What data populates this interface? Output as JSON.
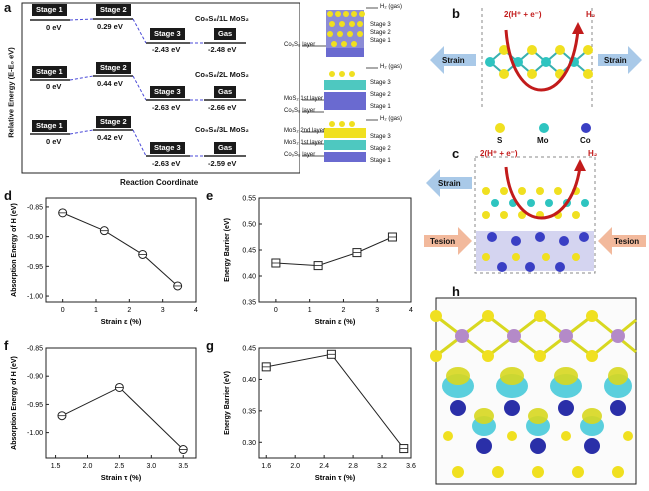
{
  "panel_labels": {
    "a": "a",
    "b": "b",
    "c": "c",
    "d": "d",
    "e": "e",
    "f": "f",
    "g": "g",
    "h": "h"
  },
  "panel_a": {
    "ylabel": "Relative Energy (E-E₀ eV)",
    "xlabel": "Reaction Coordinate",
    "rows": [
      {
        "series": "Co₉S₈/1L MoS₂",
        "stage1": "Stage 1",
        "stage2": "Stage 2",
        "stage3": "Stage 3",
        "gas": "Gas",
        "e1": "0 eV",
        "e2": "0.29 eV",
        "e3": "-2.43 eV",
        "e4": "-2.48 eV"
      },
      {
        "series": "Co₉S₈/2L MoS₂",
        "stage1": "Stage 1",
        "stage2": "Stage 2",
        "stage3": "Stage 3",
        "gas": "Gas",
        "e1": "0 eV",
        "e2": "0.44 eV",
        "e3": "-2.63 eV",
        "e4": "-2.66 eV"
      },
      {
        "series": "Co₉S₈/3L MoS₂",
        "stage1": "Stage 1",
        "stage2": "Stage 2",
        "stage3": "Stage 3",
        "gas": "Gas",
        "e1": "0 eV",
        "e2": "0.42 eV",
        "e3": "-2.63 eV",
        "e4": "-2.59 eV"
      }
    ],
    "struct_labels": [
      {
        "h2": "H₂ (gas)",
        "s3": "Stage 3",
        "s2": "Stage 2",
        "s1": "Stage 1",
        "layers": [
          "Co₉S₈ layer"
        ]
      },
      {
        "h2": "H₂ (gas)",
        "s3": "Stage 3",
        "s2": "Stage 2",
        "s1": "Stage 1",
        "layers": [
          "MoS₂ 1st layer",
          "Co₉S₈ layer"
        ]
      },
      {
        "h2": "H₂ (gas)",
        "s3": "Stage 3",
        "s2": "Stage 2",
        "s1": "Stage 1",
        "layers": [
          "MoS₂ 2nd layer",
          "MoS₂ 1st layer",
          "Co₉S₈ layer"
        ]
      }
    ]
  },
  "panel_b": {
    "reaction": "2(H⁺ + e⁻)",
    "product": "H₂",
    "strain_left": "Strain",
    "strain_right": "Strain",
    "legend": [
      {
        "label": "S",
        "color": "#f2e200"
      },
      {
        "label": "Mo",
        "color": "#2ec4c0"
      },
      {
        "label": "Co",
        "color": "#3a3fc4"
      }
    ]
  },
  "panel_c": {
    "reaction": "2(H⁺ + e⁻)",
    "product": "H₂",
    "strain_left": "Strain",
    "tesion_left": "Tesion",
    "tesion_right": "Tesion"
  },
  "chart_data": [
    {
      "panel": "d",
      "type": "line",
      "xlabel": "Strain ε (%)",
      "ylabel": "Absorption Energy of H (eV)",
      "x": [
        0,
        1.25,
        2.4,
        3.45
      ],
      "y": [
        -0.86,
        -0.89,
        -0.93,
        -0.983
      ],
      "xlim": [
        -0.5,
        4
      ],
      "ylim": [
        -1.01,
        -0.835
      ],
      "xticks": [
        0,
        1,
        2,
        3,
        4
      ],
      "yticks": [
        -0.85,
        -0.9,
        -0.95,
        -1.0
      ],
      "xticklabels": [
        "0",
        "1",
        "2",
        "3",
        "4"
      ],
      "yticklabels": [
        "-0.85",
        "-0.90",
        "-0.95",
        "-1.00"
      ],
      "marker": "circle"
    },
    {
      "panel": "e",
      "type": "line",
      "xlabel": "Strain ε (%)",
      "ylabel": "Energy Barrier (eV)",
      "x": [
        0,
        1.25,
        2.4,
        3.45
      ],
      "y": [
        0.425,
        0.42,
        0.445,
        0.475
      ],
      "xlim": [
        -0.5,
        4
      ],
      "ylim": [
        0.35,
        0.55
      ],
      "xticks": [
        0,
        1,
        2,
        3,
        4
      ],
      "yticks": [
        0.35,
        0.4,
        0.45,
        0.5,
        0.55
      ],
      "xticklabels": [
        "0",
        "1",
        "2",
        "3",
        "4"
      ],
      "yticklabels": [
        "0.35",
        "0.40",
        "0.45",
        "0.50",
        "0.55"
      ],
      "marker": "square"
    },
    {
      "panel": "f",
      "type": "line",
      "xlabel": "Strain τ (%)",
      "ylabel": "Absorption Energy of H (eV)",
      "x": [
        1.6,
        2.5,
        3.5
      ],
      "y": [
        -0.97,
        -0.92,
        -1.03
      ],
      "xlim": [
        1.35,
        3.7
      ],
      "ylim": [
        -1.045,
        -0.85
      ],
      "xticks": [
        1.5,
        2.0,
        2.5,
        3.0,
        3.5
      ],
      "yticks": [
        -0.85,
        -0.9,
        -0.95,
        -1.0
      ],
      "xticklabels": [
        "1.5",
        "2.0",
        "2.5",
        "3.0",
        "3.5"
      ],
      "yticklabels": [
        "-0.85",
        "-0.90",
        "-0.95",
        "-1.00"
      ],
      "marker": "circle"
    },
    {
      "panel": "g",
      "type": "line",
      "xlabel": "Strain τ (%)",
      "ylabel": "Energy Barrier (eV)",
      "x": [
        1.6,
        2.5,
        3.5
      ],
      "y": [
        0.42,
        0.44,
        0.29
      ],
      "xlim": [
        1.5,
        3.6
      ],
      "ylim": [
        0.275,
        0.45
      ],
      "xticks": [
        1.6,
        2.0,
        2.4,
        2.8,
        3.2,
        3.6
      ],
      "yticks": [
        0.3,
        0.35,
        0.4,
        0.45
      ],
      "xticklabels": [
        "1.6",
        "2.0",
        "2.4",
        "2.8",
        "3.2",
        "3.6"
      ],
      "yticklabels": [
        "0.30",
        "0.35",
        "0.40",
        "0.45"
      ],
      "marker": "square"
    }
  ]
}
